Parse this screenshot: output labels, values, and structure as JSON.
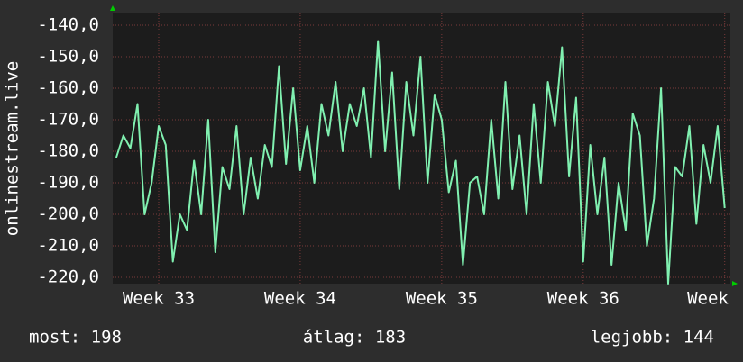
{
  "chart_data": {
    "type": "line",
    "y_label": "onlinestream.live",
    "x": [
      32.7,
      32.75,
      32.8,
      32.85,
      32.9,
      32.95,
      33.0,
      33.05,
      33.1,
      33.15,
      33.2,
      33.25,
      33.3,
      33.35,
      33.4,
      33.45,
      33.5,
      33.55,
      33.6,
      33.65,
      33.7,
      33.75,
      33.8,
      33.85,
      33.9,
      33.95,
      34.0,
      34.05,
      34.1,
      34.15,
      34.2,
      34.25,
      34.3,
      34.35,
      34.4,
      34.45,
      34.5,
      34.55,
      34.6,
      34.65,
      34.7,
      34.75,
      34.8,
      34.85,
      34.9,
      34.95,
      35.0,
      35.05,
      35.1,
      35.15,
      35.2,
      35.25,
      35.3,
      35.35,
      35.4,
      35.45,
      35.5,
      35.55,
      35.6,
      35.65,
      35.7,
      35.75,
      35.8,
      35.85,
      35.9,
      35.95,
      36.0,
      36.05,
      36.1,
      36.15,
      36.2,
      36.25,
      36.3,
      36.35,
      36.4,
      36.45,
      36.5,
      36.55,
      36.6,
      36.65,
      36.7,
      36.75,
      36.8,
      36.85,
      36.9,
      36.95,
      37.0
    ],
    "series": [
      {
        "color": "#80f0b0",
        "values": [
          -182,
          -175,
          -179,
          -165,
          -200,
          -190,
          -172,
          -178,
          -215,
          -200,
          -205,
          -183,
          -200,
          -170,
          -212,
          -185,
          -192,
          -172,
          -200,
          -182,
          -195,
          -178,
          -185,
          -153,
          -184,
          -160,
          -186,
          -172,
          -190,
          -165,
          -175,
          -158,
          -180,
          -165,
          -172,
          -160,
          -182,
          -145,
          -180,
          -155,
          -192,
          -158,
          -175,
          -150,
          -190,
          -162,
          -170,
          -193,
          -183,
          -216,
          -190,
          -188,
          -200,
          -170,
          -195,
          -158,
          -192,
          -175,
          -200,
          -165,
          -190,
          -158,
          -172,
          -147,
          -188,
          -163,
          -215,
          -178,
          -200,
          -182,
          -216,
          -190,
          -205,
          -168,
          -175,
          -210,
          -195,
          -160,
          -222,
          -185,
          -188,
          -172,
          -203,
          -178,
          -190,
          -172,
          -198
        ]
      }
    ],
    "xlim": [
      32.675,
      37.04
    ],
    "ylim": [
      -222,
      -136
    ],
    "yticks": [
      {
        "value": -140,
        "label": "-140,0"
      },
      {
        "value": -150,
        "label": "-150,0"
      },
      {
        "value": -160,
        "label": "-160,0"
      },
      {
        "value": -170,
        "label": "-170,0"
      },
      {
        "value": -180,
        "label": "-180,0"
      },
      {
        "value": -190,
        "label": "-190,0"
      },
      {
        "value": -200,
        "label": "-200,0"
      },
      {
        "value": -210,
        "label": "-210,0"
      },
      {
        "value": -220,
        "label": "-220,0"
      }
    ],
    "xticks": [
      {
        "value": 33,
        "label": "Week 33"
      },
      {
        "value": 34,
        "label": "Week 34"
      },
      {
        "value": 35,
        "label": "Week 35"
      },
      {
        "value": 36,
        "label": "Week 36"
      },
      {
        "value": 37,
        "label": "Week"
      }
    ],
    "grid": true,
    "footer": [
      "most: 198",
      "átlag: 183",
      "legjobb: 144"
    ]
  }
}
